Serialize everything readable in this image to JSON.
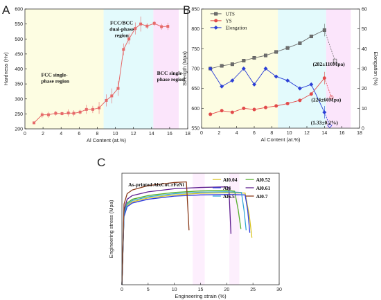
{
  "chart_data": [
    {
      "id": "A",
      "panel_label": "A",
      "type": "line",
      "xlabel": "Al Content (at.%)",
      "ylabel": "Hardness (Hv)",
      "xlim": [
        0,
        18
      ],
      "ylim": [
        200,
        600
      ],
      "xticks": [
        0,
        2,
        4,
        6,
        8,
        10,
        12,
        14,
        16,
        18
      ],
      "yticks": [
        200,
        250,
        300,
        350,
        400,
        450,
        500,
        550,
        600
      ],
      "regions": [
        {
          "label": [
            "FCC single-",
            "phase region"
          ],
          "x0": 0,
          "x1": 8.7,
          "color": "#fdfde2"
        },
        {
          "label": [
            "FCC/BCC",
            "dual-phase",
            "region"
          ],
          "x0": 8.7,
          "x1": 14.2,
          "color": "#e3fafc"
        },
        {
          "label": [
            "BCC single-",
            "phase region"
          ],
          "x0": 14.2,
          "x1": 17,
          "color": "#fbe5fb"
        }
      ],
      "series": [
        {
          "color": "#e66a6a",
          "x": [
            1,
            1.9,
            2.6,
            3.4,
            4.1,
            4.8,
            5.4,
            6.1,
            6.8,
            7.5,
            8.2,
            9.0,
            9.6,
            10.3,
            10.9,
            11.5,
            12.2,
            12.8,
            13.5,
            14.3,
            15.1,
            15.8
          ],
          "y": [
            220,
            247,
            247,
            252,
            251,
            253,
            252,
            256,
            265,
            265,
            270,
            295,
            310,
            335,
            465,
            500,
            535,
            550,
            543,
            552,
            541,
            542
          ],
          "err": [
            3,
            10,
            10,
            8,
            6,
            12,
            10,
            8,
            15,
            12,
            20,
            20,
            25,
            25,
            20,
            18,
            20,
            25,
            10,
            8,
            10,
            12
          ]
        }
      ]
    },
    {
      "id": "B",
      "panel_label": "B",
      "type": "line",
      "xlabel": "Al Content (at.%)",
      "ylabel": "Strength (Mpa)",
      "ylabel_right": "Elongation (%)",
      "xlim": [
        0,
        18
      ],
      "ylim": [
        550,
        850
      ],
      "ylim_right": [
        0,
        60
      ],
      "xticks": [
        0,
        2,
        4,
        6,
        8,
        10,
        12,
        14,
        16,
        18
      ],
      "yticks": [
        550,
        600,
        650,
        700,
        750,
        800,
        850
      ],
      "yticks_right": [
        0,
        10,
        20,
        30,
        40,
        50,
        60
      ],
      "legend": [
        "UTS",
        "YS",
        "Elongation"
      ],
      "annotations": [
        "(282±110Mpa)",
        "(224±60Mpa)",
        "(1.33±0.2%)"
      ],
      "regions": [
        {
          "x0": 0,
          "x1": 8.7,
          "color": "#fdfde2"
        },
        {
          "x0": 8.7,
          "x1": 14.2,
          "color": "#e3fafc"
        },
        {
          "x0": 14.2,
          "x1": 17,
          "color": "#fbe5fb"
        }
      ],
      "series": [
        {
          "name": "UTS",
          "axis": "left",
          "color": "#6e6e6e",
          "marker": "square",
          "x": [
            1,
            2.3,
            3.5,
            4.8,
            6.0,
            7.3,
            8.5,
            9.8,
            11.2,
            12.5,
            14.0,
            15.2
          ],
          "y": [
            700,
            707,
            711,
            720,
            727,
            733,
            742,
            752,
            764,
            781,
            797,
            720
          ]
        },
        {
          "name": "YS",
          "axis": "left",
          "color": "#e24a4a",
          "marker": "circle",
          "x": [
            1,
            2.3,
            3.5,
            4.8,
            6.0,
            7.3,
            8.5,
            9.8,
            11.2,
            12.5,
            14.0,
            14.8
          ],
          "y": [
            585,
            594,
            590,
            600,
            597,
            602,
            606,
            612,
            620,
            636,
            676,
            628
          ]
        },
        {
          "name": "Elongation",
          "axis": "right",
          "color": "#2b3fd6",
          "marker": "diamond",
          "x": [
            1,
            2.3,
            3.5,
            4.8,
            6.0,
            7.3,
            8.5,
            9.8,
            11.2,
            12.5,
            14.0,
            14.6
          ],
          "y": [
            30,
            21,
            24,
            30,
            22,
            30,
            26,
            24,
            20,
            22,
            8,
            1.3
          ]
        }
      ]
    },
    {
      "id": "C",
      "panel_label": "C",
      "type": "line",
      "title": "As-printed AlxCoCrFeNi",
      "xlabel": "Engineering strain (%)",
      "ylabel": "Engineering stress (Mpa)",
      "xlim": [
        0,
        30
      ],
      "ylim": [
        0,
        900
      ],
      "xticks": [
        0,
        5,
        10,
        15,
        20,
        25,
        30
      ],
      "regions": [
        {
          "x0": 13.5,
          "x1": 15.8,
          "color": "#fdeffd"
        },
        {
          "x0": 20.5,
          "x1": 22.4,
          "color": "#fdeffd"
        }
      ],
      "series": [
        {
          "name": "Al0.04",
          "color": "#d9c420",
          "x": [
            0,
            0.4,
            1.0,
            2.0,
            5,
            10,
            15,
            20,
            23.5,
            24.3,
            24.8
          ],
          "y": [
            0,
            560,
            640,
            670,
            700,
            725,
            738,
            742,
            740,
            560,
            380
          ]
        },
        {
          "name": "Al0.52",
          "color": "#55b02a",
          "x": [
            0,
            0.4,
            1.0,
            2.0,
            5,
            10,
            15,
            20,
            21.5,
            22.2,
            22.7
          ],
          "y": [
            0,
            580,
            660,
            690,
            720,
            745,
            757,
            762,
            755,
            600,
            450
          ]
        },
        {
          "name": "Al4",
          "color": "#2d3adf",
          "x": [
            0,
            0.4,
            1.0,
            2.0,
            5,
            10,
            15,
            20,
            23.5,
            24.0,
            24.4
          ],
          "y": [
            0,
            550,
            630,
            660,
            690,
            715,
            725,
            728,
            725,
            600,
            420
          ]
        },
        {
          "name": "Al0.61",
          "color": "#5e1f8f",
          "x": [
            0,
            0.4,
            1.0,
            2.0,
            5,
            10,
            15,
            20,
            20.4,
            20.6,
            20.8
          ],
          "y": [
            0,
            600,
            690,
            720,
            750,
            775,
            785,
            790,
            785,
            600,
            410
          ]
        },
        {
          "name": "Al6.5",
          "color": "#35a6d8",
          "x": [
            0,
            0.4,
            1.0,
            2.0,
            5,
            10,
            15,
            20,
            22.8,
            23.3,
            23.7
          ],
          "y": [
            0,
            570,
            650,
            680,
            710,
            735,
            747,
            750,
            745,
            600,
            440
          ]
        },
        {
          "name": "Al0.7",
          "color": "#8a3a1a",
          "x": [
            0,
            0.4,
            1.0,
            2.0,
            5,
            10,
            12.3,
            12.6,
            12.8
          ],
          "y": [
            0,
            650,
            735,
            765,
            800,
            825,
            830,
            600,
            440
          ]
        }
      ]
    }
  ]
}
